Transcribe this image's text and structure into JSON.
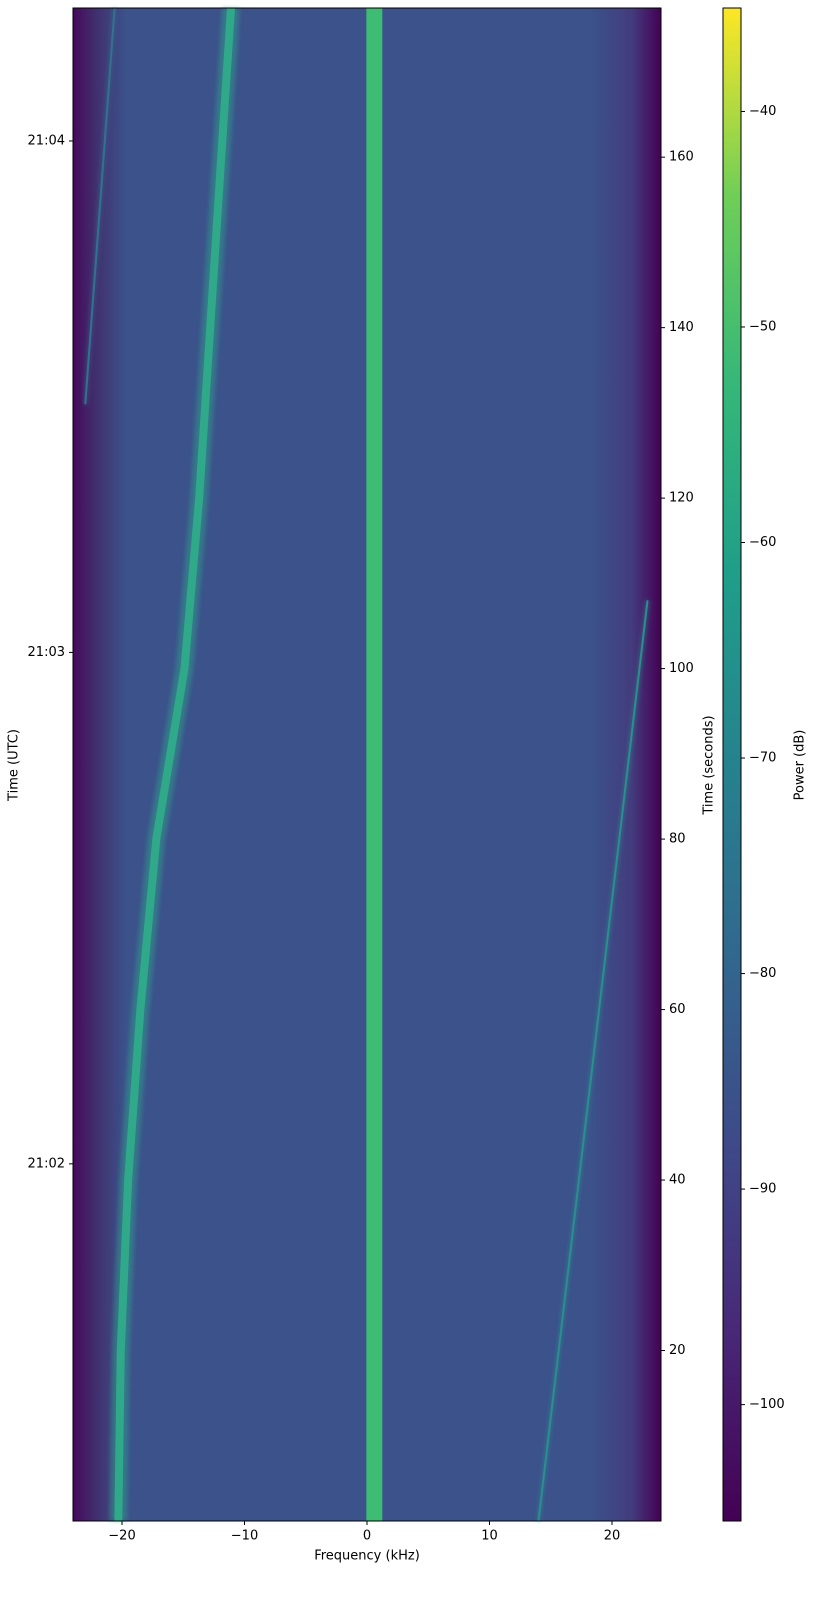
{
  "chart_data": {
    "type": "spectrogram",
    "xlabel": "Frequency (kHz)",
    "ylabel": "Time (UTC)",
    "y2label": "Time (seconds)",
    "colorbar_label": "Power (dB)",
    "colormap": [
      "#440154",
      "#482878",
      "#3e4a89",
      "#31688e",
      "#26828e",
      "#1f9e89",
      "#35b779",
      "#6ece58",
      "#fde725"
    ],
    "xlim": [
      -24,
      24
    ],
    "xticks": [
      {
        "value": -20,
        "label": "−20"
      },
      {
        "value": -10,
        "label": "−10"
      },
      0,
      10,
      20
    ],
    "ylim": [
      78.1,
      255.6
    ],
    "yticks": [
      {
        "value": 120,
        "label": "21:02"
      },
      {
        "value": 180,
        "label": "21:03"
      },
      {
        "value": 240,
        "label": "21:04"
      }
    ],
    "y2lim": [
      0,
      177.5
    ],
    "y2ticks": [
      20,
      40,
      60,
      80,
      100,
      120,
      140,
      160
    ],
    "clim": [
      -105.4,
      -35.2
    ],
    "cticks": [
      {
        "value": -100,
        "label": "−100"
      },
      {
        "value": -90,
        "label": "−90"
      },
      {
        "value": -80,
        "label": "−80"
      },
      {
        "value": -70,
        "label": "−70"
      },
      {
        "value": -60,
        "label": "−60"
      },
      {
        "value": -50,
        "label": "−50"
      },
      {
        "value": -40,
        "label": "−40"
      }
    ],
    "series": [
      {
        "color": "#3fbc73",
        "axis": "y2",
        "x": [
          0.6,
          0.6
        ],
        "values": [
          0,
          177.5
        ]
      },
      {
        "color": "#2fa98a",
        "axis": "y2",
        "x": [
          -20.3,
          -20.1,
          -19.5,
          -18.5,
          -17.2,
          -14.9,
          -13.7,
          -12.8,
          -11.9,
          -11.1
        ],
        "values": [
          0,
          20,
          40,
          60,
          80,
          100,
          120,
          140,
          160,
          177.5
        ]
      },
      {
        "color": "#2a8f8e",
        "axis": "y2",
        "x": [
          14.0,
          22.9
        ],
        "values": [
          0,
          108
        ]
      },
      {
        "color": "#33728e",
        "axis": "y2",
        "x": [
          -23.0,
          -20.6
        ],
        "values": [
          131,
          177.5
        ]
      }
    ]
  }
}
